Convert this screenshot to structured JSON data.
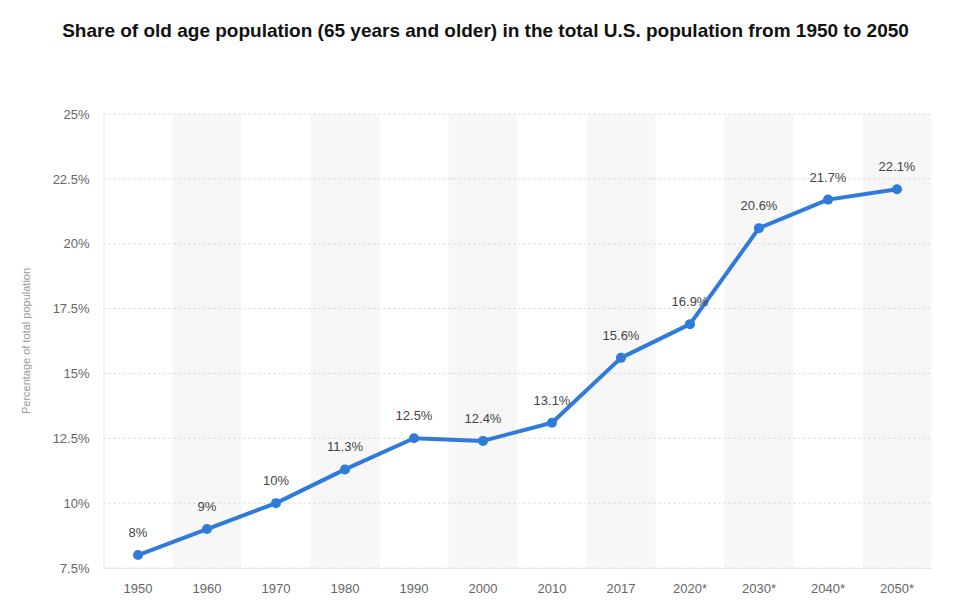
{
  "chart_data": {
    "type": "line",
    "title": "Share of old age population (65 years and older) in the total U.S. population from 1950 to 2050",
    "y_label": "Percentage of total population",
    "categories": [
      "1950",
      "1960",
      "1970",
      "1980",
      "1990",
      "2000",
      "2010",
      "2017",
      "2020*",
      "2030*",
      "2040*",
      "2050*"
    ],
    "values": [
      8,
      9,
      10,
      11.3,
      12.5,
      12.4,
      13.1,
      15.6,
      16.9,
      20.6,
      21.7,
      22.1
    ],
    "value_labels": [
      "8%",
      "9%",
      "10%",
      "11.3%",
      "12.5%",
      "12.4%",
      "13.1%",
      "15.6%",
      "16.9%",
      "20.6%",
      "21.7%",
      "22.1%"
    ],
    "color": "#2f7bd9",
    "ylim": [
      7.5,
      25
    ],
    "yticks": [
      {
        "value": 7.5,
        "label": "7.5%"
      },
      {
        "value": 10,
        "label": "10%"
      },
      {
        "value": 12.5,
        "label": "12.5%"
      },
      {
        "value": 15,
        "label": "15%"
      },
      {
        "value": 17.5,
        "label": "17.5%"
      },
      {
        "value": 20,
        "label": "20%"
      },
      {
        "value": 22.5,
        "label": "22.5%"
      },
      {
        "value": 25,
        "label": "25%"
      }
    ],
    "grid": true,
    "data_labels": true,
    "marker": "circle",
    "line_style": "solid"
  }
}
